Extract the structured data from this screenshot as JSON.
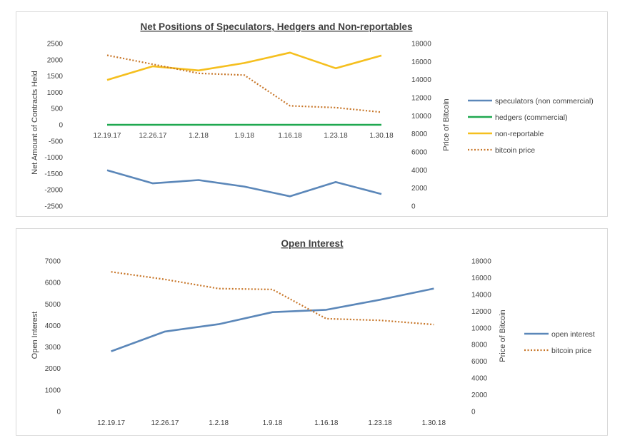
{
  "chart_data": [
    {
      "type": "line",
      "title": "Net Positions of Speculators, Hedgers and Non-reportables",
      "categories": [
        "12.19.17",
        "12.26.17",
        "1.2.18",
        "1.9.18",
        "1.16.18",
        "1.23.18",
        "1.30.18"
      ],
      "ylabel": "Net Amount of Contracts Held",
      "y2label": "Price of Bitcoin",
      "ylim": [
        -2500,
        2500
      ],
      "y2lim": [
        0,
        18000
      ],
      "yticks": [
        "2500",
        "2000",
        "1500",
        "1000",
        "500",
        "0",
        "-500",
        "-1000",
        "-1500",
        "-2000",
        "-2500"
      ],
      "y2ticks": [
        "18000",
        "16000",
        "14000",
        "12000",
        "10000",
        "8000",
        "6000",
        "4000",
        "2000",
        "0"
      ],
      "legend_position": "right",
      "series": [
        {
          "name": "speculators (non commercial)",
          "axis": "left",
          "color": "#5b87b9",
          "dash": "solid",
          "values": [
            -1400,
            -1800,
            -1700,
            -1900,
            -2200,
            -1760,
            -2130
          ]
        },
        {
          "name": "hedgers (commercial)",
          "axis": "left",
          "color": "#1fa84f",
          "dash": "solid",
          "values": [
            0,
            0,
            0,
            0,
            0,
            0,
            0
          ]
        },
        {
          "name": "non-reportable",
          "axis": "left",
          "color": "#f5bf1e",
          "dash": "solid",
          "values": [
            1380,
            1800,
            1670,
            1900,
            2220,
            1740,
            2130
          ]
        },
        {
          "name": "bitcoin price",
          "axis": "right",
          "color": "#c8772a",
          "dash": "dotted",
          "values": [
            16700,
            15700,
            14700,
            14500,
            11100,
            10900,
            10400
          ]
        }
      ]
    },
    {
      "type": "line",
      "title": "Open Interest",
      "categories": [
        "12.19.17",
        "12.26.17",
        "1.2.18",
        "1.9.18",
        "1.16.18",
        "1.23.18",
        "1.30.18"
      ],
      "ylabel": "Open Interest",
      "y2label": "Price of Bitcoin",
      "ylim": [
        0,
        7000
      ],
      "y2lim": [
        0,
        18000
      ],
      "yticks": [
        "7000",
        "6000",
        "5000",
        "4000",
        "3000",
        "2000",
        "1000",
        "0"
      ],
      "y2ticks": [
        "18000",
        "16000",
        "14000",
        "12000",
        "10000",
        "8000",
        "6000",
        "4000",
        "2000",
        "0"
      ],
      "legend_position": "right",
      "series": [
        {
          "name": "open interest",
          "axis": "left",
          "color": "#5b87b9",
          "dash": "solid",
          "values": [
            2800,
            3720,
            4060,
            4620,
            4730,
            5200,
            5720
          ]
        },
        {
          "name": "bitcoin price",
          "axis": "right",
          "color": "#c8772a",
          "dash": "dotted",
          "values": [
            16700,
            15800,
            14700,
            14600,
            11100,
            10900,
            10400
          ]
        }
      ]
    }
  ]
}
